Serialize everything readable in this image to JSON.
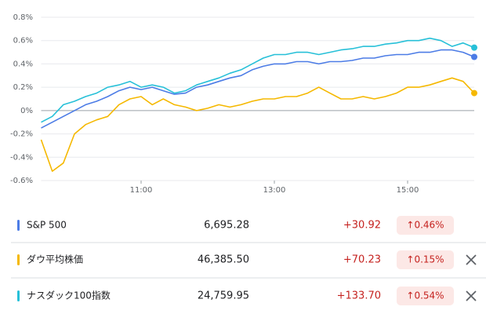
{
  "chart_data": {
    "type": "line",
    "x": [
      "9:30",
      "9:40",
      "9:50",
      "10:00",
      "10:10",
      "10:20",
      "10:30",
      "10:40",
      "10:50",
      "11:00",
      "11:10",
      "11:20",
      "11:30",
      "11:40",
      "11:50",
      "12:00",
      "12:10",
      "12:20",
      "12:30",
      "12:40",
      "12:50",
      "13:00",
      "13:10",
      "13:20",
      "13:30",
      "13:40",
      "13:50",
      "14:00",
      "14:10",
      "14:20",
      "14:30",
      "14:40",
      "14:50",
      "15:00",
      "15:10",
      "15:20",
      "15:30",
      "15:40",
      "15:50",
      "16:00"
    ],
    "xticks": [
      "11:00",
      "13:00",
      "15:00"
    ],
    "ylim": [
      -0.6,
      0.8
    ],
    "yticks": [
      {
        "value": -0.6,
        "label": "-0.6%"
      },
      {
        "value": -0.4,
        "label": "-0.4%"
      },
      {
        "value": -0.2,
        "label": "-0.2%"
      },
      {
        "value": 0,
        "label": "0%"
      },
      {
        "value": 0.2,
        "label": "0.2%"
      },
      {
        "value": 0.4,
        "label": "0.4%"
      },
      {
        "value": 0.6,
        "label": "0.6%"
      },
      {
        "value": 0.8,
        "label": "0.8%"
      }
    ],
    "grid": true,
    "series": [
      {
        "name": "S&P 500",
        "color": "#4c7ce6",
        "values": [
          -0.15,
          -0.1,
          -0.05,
          0.0,
          0.05,
          0.08,
          0.12,
          0.17,
          0.2,
          0.18,
          0.2,
          0.17,
          0.14,
          0.15,
          0.2,
          0.22,
          0.25,
          0.28,
          0.3,
          0.35,
          0.38,
          0.4,
          0.4,
          0.42,
          0.42,
          0.4,
          0.42,
          0.42,
          0.43,
          0.45,
          0.45,
          0.47,
          0.48,
          0.48,
          0.5,
          0.5,
          0.52,
          0.52,
          0.5,
          0.46
        ]
      },
      {
        "name": "ダウ平均株価",
        "color": "#f5b800",
        "values": [
          -0.25,
          -0.52,
          -0.45,
          -0.2,
          -0.12,
          -0.08,
          -0.05,
          0.05,
          0.1,
          0.12,
          0.05,
          0.1,
          0.05,
          0.03,
          0.0,
          0.02,
          0.05,
          0.03,
          0.05,
          0.08,
          0.1,
          0.1,
          0.12,
          0.12,
          0.15,
          0.2,
          0.15,
          0.1,
          0.1,
          0.12,
          0.1,
          0.12,
          0.15,
          0.2,
          0.2,
          0.22,
          0.25,
          0.28,
          0.25,
          0.15
        ]
      },
      {
        "name": "ナスダック100指数",
        "color": "#27c0d8",
        "values": [
          -0.1,
          -0.05,
          0.05,
          0.08,
          0.12,
          0.15,
          0.2,
          0.22,
          0.25,
          0.2,
          0.22,
          0.2,
          0.15,
          0.17,
          0.22,
          0.25,
          0.28,
          0.32,
          0.35,
          0.4,
          0.45,
          0.48,
          0.48,
          0.5,
          0.5,
          0.48,
          0.5,
          0.52,
          0.53,
          0.55,
          0.55,
          0.57,
          0.58,
          0.6,
          0.6,
          0.62,
          0.6,
          0.55,
          0.58,
          0.54
        ]
      }
    ]
  },
  "table": {
    "rows": [
      {
        "price": "6,695.28",
        "change": "+30.92",
        "percent": "↑0.46%"
      },
      {
        "price": "46,385.50",
        "change": "+70.23",
        "percent": "↑0.15%"
      },
      {
        "price": "24,759.95",
        "change": "+133.70",
        "percent": "↑0.54%"
      }
    ]
  }
}
